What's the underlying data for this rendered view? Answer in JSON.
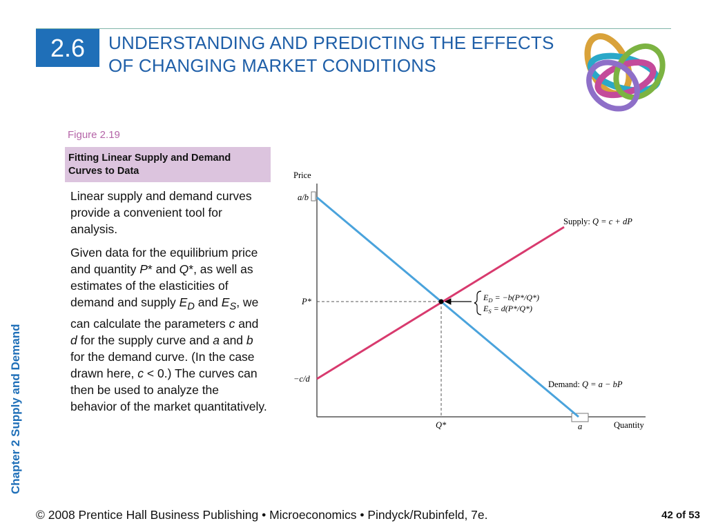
{
  "header": {
    "section_number": "2.6",
    "title": "UNDERSTANDING AND PREDICTING THE EFFECTS OF CHANGING MARKET CONDITIONS"
  },
  "side_label": "Chapter 2  Supply and Demand",
  "figure": {
    "label": "Figure 2.19",
    "title": "Fitting Linear Supply and Demand Curves to Data"
  },
  "body": {
    "p1": "Linear supply and demand curves provide a convenient tool for analysis.",
    "p2": {
      "t1": "Given data for the equilibrium price and quantity ",
      "pstar": "P",
      "t2": "* and ",
      "qstar": "Q",
      "t3": "*, as well as estimates of the elasticities of demand and supply ",
      "ed_base": "E",
      "ed_sub": "D",
      "t4": " and ",
      "es_base": "E",
      "es_sub": "S",
      "t5": ", we can calculate the parameters ",
      "c": "c",
      "t6": " and ",
      "d": "d",
      "t7": " for the supply curve and ",
      "a": "a",
      "t8": " and ",
      "b": "b",
      "t9": " for the demand curve. (In the case drawn here, ",
      "c2": "c",
      "t10": " < 0.) The curves can then be used to analyze the behavior of the market quantitatively."
    }
  },
  "chart_data": {
    "type": "line",
    "ylabel": "Price",
    "xlabel": "Quantity",
    "y_ticks": {
      "a_over_b": "a/b",
      "pstar": "P*",
      "neg_c_over_d": "−c/d"
    },
    "x_ticks": {
      "qstar": "Q*",
      "a": "a"
    },
    "supply_label": {
      "prefix": "Supply: ",
      "eq": "Q = c + dP"
    },
    "demand_label": {
      "prefix": "Demand: ",
      "eq": "Q = a − bP"
    },
    "elasticity": {
      "ed_lhs": "E",
      "ed_sub": "D",
      "ed_rhs": " = −b(P*/Q*)",
      "es_lhs": "E",
      "es_sub": "S",
      "es_rhs": " = d(P*/Q*)"
    },
    "colors": {
      "supply": "#d83a6e",
      "demand": "#4aa3dc",
      "axis": "#555555"
    }
  },
  "footer": {
    "text": "© 2008 Prentice Hall Business Publishing  •  Microeconomics  •  Pindyck/Rubinfeld, 7e.",
    "page": "42 of 53"
  }
}
